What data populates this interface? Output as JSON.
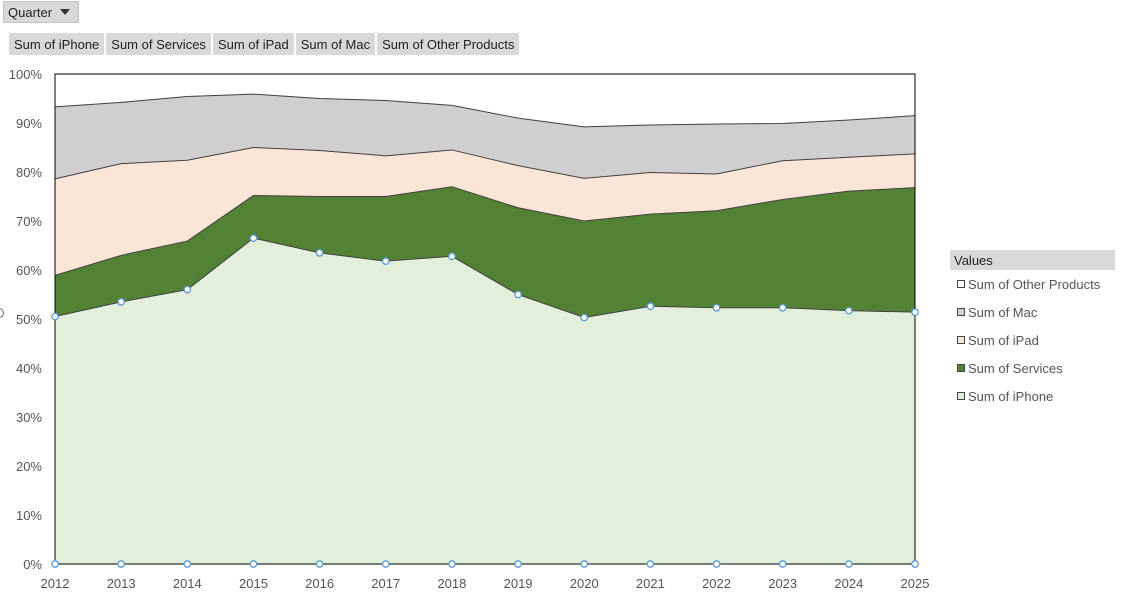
{
  "filter": {
    "label": "Quarter",
    "icon": "dropdown-caret-icon"
  },
  "field_buttons": [
    "Sum of iPhone",
    "Sum of Services",
    "Sum of iPad",
    "Sum of Mac",
    "Sum of Other Products"
  ],
  "legend": {
    "title": "Values",
    "items": [
      {
        "label": "Sum of Other Products",
        "color": "#ffffff"
      },
      {
        "label": "Sum of Mac",
        "color": "#d0cece"
      },
      {
        "label": "Sum of iPad",
        "color": "#fbe5d6"
      },
      {
        "label": "Sum of Services",
        "color": "#548235"
      },
      {
        "label": "Sum of iPhone",
        "color": "#e2efda"
      }
    ]
  },
  "chart_data": {
    "type": "area",
    "stacked": true,
    "categories": [
      "2012",
      "2013",
      "2014",
      "2015",
      "2016",
      "2017",
      "2018",
      "2019",
      "2020",
      "2021",
      "2022",
      "2023",
      "2024",
      "2025"
    ],
    "ylim": [
      0,
      100
    ],
    "y_ticks": [
      "0%",
      "10%",
      "20%",
      "30%",
      "40%",
      "50%",
      "60%",
      "70%",
      "80%",
      "90%",
      "100%"
    ],
    "series": [
      {
        "name": "Sum of iPhone",
        "color": "#e2efda",
        "values": [
          50.5,
          53.5,
          56,
          66.5,
          63.5,
          61.8,
          62.8,
          55,
          50.3,
          52.6,
          52.3,
          52.3,
          51.7,
          51.4
        ]
      },
      {
        "name": "Sum of Services",
        "color": "#548235",
        "values": [
          8.4,
          9.5,
          9.9,
          8.7,
          11.5,
          13.2,
          14.2,
          17.7,
          19.7,
          18.8,
          19.8,
          22.1,
          24.4,
          25.4
        ]
      },
      {
        "name": "Sum of iPad",
        "color": "#fbe5d6",
        "values": [
          19.7,
          18.7,
          16.5,
          9.8,
          9.4,
          8.3,
          7.5,
          8.6,
          8.7,
          8.5,
          7.5,
          7.9,
          6.9,
          6.9
        ]
      },
      {
        "name": "Sum of Mac",
        "color": "#d0cece",
        "values": [
          14.7,
          12.5,
          13,
          10.9,
          10.6,
          11.3,
          9.1,
          9.7,
          10.5,
          9.7,
          10.2,
          7.6,
          7.6,
          7.8
        ]
      },
      {
        "name": "Sum of Other Products",
        "color": "#ffffff",
        "values": [
          6.7,
          5.8,
          4.6,
          4.1,
          5,
          5.4,
          6.4,
          9,
          10.8,
          10.4,
          10.2,
          10.1,
          9.4,
          8.5
        ]
      }
    ],
    "selected_series": "Sum of iPhone",
    "marker_color": "#5b9bd5"
  }
}
